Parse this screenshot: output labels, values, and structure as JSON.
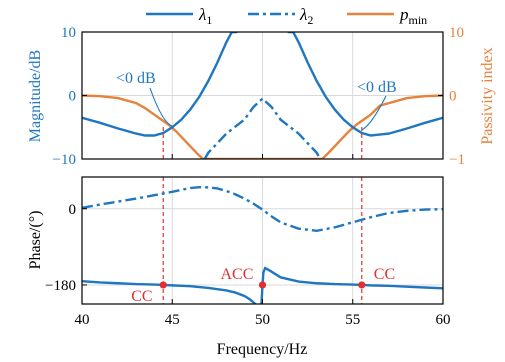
{
  "colors": {
    "blue": "#1f77c1",
    "orange": "#e6823a",
    "red": "#e03030",
    "grid": "#d9d9d9",
    "axis": "#000000"
  },
  "legend": {
    "lambda1": "λ1",
    "lambda2": "λ2",
    "pmin": "pmin"
  },
  "chart_data": [
    {
      "type": "line",
      "xlabel": "",
      "ylabel": "Magnitude/dB",
      "y2label": "Passivity index",
      "xlim": [
        40,
        60
      ],
      "ylim": [
        -10,
        10
      ],
      "y2lim": [
        -1,
        1
      ],
      "yticks": [
        "10",
        "0",
        "−10"
      ],
      "y2ticks": [
        "10",
        "0",
        "−1"
      ],
      "grid": true,
      "annotations": [
        "<0 dB",
        "<0 dB"
      ],
      "series": [
        {
          "name": "λ1",
          "style": "solid",
          "color": "#1f77c1",
          "x": [
            40,
            41,
            42,
            43,
            43.5,
            44,
            44.5,
            45,
            45.5,
            46,
            46.5,
            47,
            47.5,
            48,
            48.3,
            48.6,
            50.0,
            51.4,
            51.7,
            52,
            52.5,
            53,
            53.5,
            54,
            54.5,
            55,
            55.5,
            56,
            57,
            58,
            59,
            60
          ],
          "y": [
            -3.5,
            -4.3,
            -5.2,
            -6.0,
            -6.3,
            -6.3,
            -5.9,
            -5.0,
            -3.8,
            -2.2,
            -0.2,
            2.3,
            5.2,
            8.4,
            10.0,
            10.0,
            null,
            10.0,
            10.0,
            8.4,
            5.2,
            2.3,
            -0.2,
            -2.2,
            -3.8,
            -5.0,
            -5.9,
            -6.3,
            -6.0,
            -5.2,
            -4.3,
            -3.5
          ]
        },
        {
          "name": "λ2",
          "style": "dashdot",
          "color": "#1f77c1",
          "x": [
            46.8,
            47,
            47.5,
            48,
            48.5,
            49,
            49.5,
            50,
            50.5,
            51,
            51.5,
            52,
            52.5,
            53,
            53.2
          ],
          "y": [
            -10,
            -9.0,
            -7.5,
            -6.0,
            -4.9,
            -3.8,
            -1.8,
            -0.5,
            -1.8,
            -3.8,
            -4.9,
            -6.0,
            -7.5,
            -9.0,
            -10
          ]
        },
        {
          "name": "pmin",
          "style": "solid",
          "color": "#e6823a",
          "axis": "right",
          "x": [
            40,
            41,
            42,
            43,
            43.5,
            44,
            44.4,
            44.8,
            45.2,
            45.6,
            46,
            46.4,
            46.7,
            53.3,
            53.6,
            54,
            54.4,
            54.8,
            55.2,
            55.6,
            56,
            56.5,
            57,
            58,
            59,
            60
          ],
          "y": [
            0,
            -0.01,
            -0.04,
            -0.12,
            -0.2,
            -0.3,
            -0.38,
            -0.46,
            -0.56,
            -0.68,
            -0.8,
            -0.92,
            -1.0,
            -1.0,
            -0.92,
            -0.8,
            -0.68,
            -0.56,
            -0.46,
            -0.38,
            -0.3,
            -0.16,
            -0.12,
            -0.04,
            -0.01,
            0
          ]
        }
      ]
    },
    {
      "type": "line",
      "xlabel": "Frequency/Hz",
      "ylabel": "Phase/(°)",
      "xlim": [
        40,
        60
      ],
      "ylim": [
        -225,
        75
      ],
      "xticks": [
        "40",
        "45",
        "50",
        "55",
        "60"
      ],
      "yticks": [
        "0",
        "−180"
      ],
      "grid": true,
      "annotations": [
        "CC",
        "ACC",
        "CC"
      ],
      "markers": [
        {
          "label": "CC",
          "x": 44.5,
          "y": -180
        },
        {
          "label": "ACC",
          "x": 50.0,
          "y": -180
        },
        {
          "label": "CC",
          "x": 55.5,
          "y": -180
        }
      ],
      "series": [
        {
          "name": "λ1",
          "style": "solid",
          "color": "#1f77c1",
          "x": [
            40,
            41,
            42,
            43,
            44,
            44.5,
            45,
            46,
            47,
            48,
            48.5,
            49,
            49.3,
            49.6,
            49.85,
            49.95,
            50.0,
            50.05,
            50.15,
            50.4,
            51,
            52,
            53,
            54,
            55,
            55.5,
            56,
            57,
            58,
            59,
            60
          ],
          "y": [
            -171,
            -174,
            -176,
            -178,
            -179,
            -180,
            -181,
            -183,
            -187,
            -193,
            -198,
            -206,
            -214,
            -225,
            -236,
            -220,
            -180,
            -150,
            -140,
            -146,
            -162,
            -172,
            -176,
            -178,
            -179,
            -180,
            -181,
            -182,
            -184,
            -186,
            -188
          ]
        },
        {
          "name": "λ2",
          "style": "dashdot",
          "color": "#1f77c1",
          "x": [
            40,
            41,
            42,
            43,
            44,
            45,
            46,
            46.5,
            47,
            47.5,
            48,
            48.5,
            49,
            49.5,
            50,
            50.5,
            51,
            52,
            53,
            54,
            55,
            56,
            57,
            58,
            59,
            60
          ],
          "y": [
            2,
            10,
            17,
            24,
            32,
            40,
            49,
            51,
            50.5,
            48,
            42,
            34,
            24,
            12,
            -2,
            -18,
            -32,
            -47,
            -52,
            -44,
            -32,
            -20,
            -10,
            -5,
            -2,
            -1
          ]
        }
      ]
    }
  ]
}
